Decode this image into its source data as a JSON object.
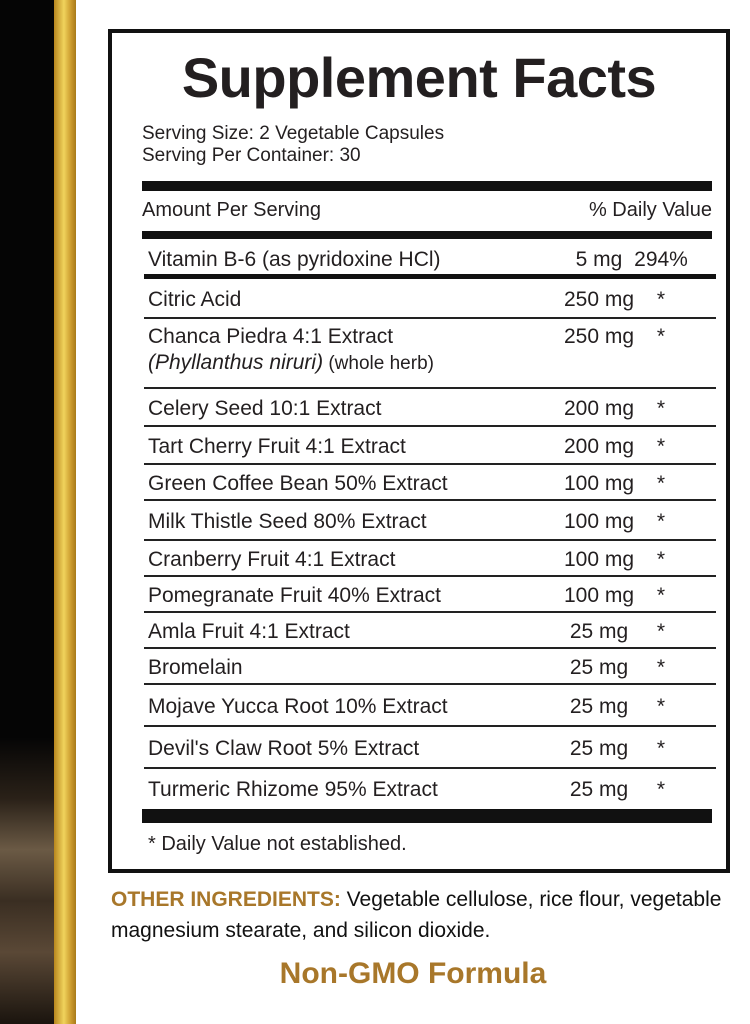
{
  "title": "Supplement Facts",
  "serving_size": "Serving Size: 2 Vegetable Capsules",
  "servings_per_container": "Serving Per Container: 30",
  "header": {
    "amount": "Amount Per Serving",
    "dv": "% Daily Value"
  },
  "rows": [
    {
      "name": "Vitamin B-6 (as pyridoxine HCl)",
      "amount": "5 mg",
      "dv": "294%"
    },
    {
      "name": "Citric Acid",
      "amount": "250 mg",
      "dv": "*"
    },
    {
      "name": "Chanca Piedra 4:1 Extract",
      "sub_italic": "(Phyllanthus niruri)",
      "sub": " (whole herb)",
      "amount": "250 mg",
      "dv": "*"
    },
    {
      "name": "Celery Seed 10:1 Extract",
      "amount": "200 mg",
      "dv": "*"
    },
    {
      "name": "Tart Cherry Fruit 4:1 Extract",
      "amount": "200 mg",
      "dv": "*"
    },
    {
      "name": "Green Coffee Bean 50% Extract",
      "amount": "100 mg",
      "dv": "*"
    },
    {
      "name": "Milk Thistle Seed 80% Extract",
      "amount": "100 mg",
      "dv": "*"
    },
    {
      "name": "Cranberry Fruit 4:1 Extract",
      "amount": "100 mg",
      "dv": "*"
    },
    {
      "name": "Pomegranate Fruit 40% Extract",
      "amount": "100 mg",
      "dv": "*"
    },
    {
      "name": "Amla Fruit 4:1 Extract",
      "amount": "25 mg",
      "dv": "*"
    },
    {
      "name": "Bromelain",
      "amount": "25 mg",
      "dv": "*"
    },
    {
      "name": "Mojave Yucca Root 10% Extract",
      "amount": "25 mg",
      "dv": "*"
    },
    {
      "name": "Devil's Claw Root 5% Extract",
      "amount": "25 mg",
      "dv": "*"
    },
    {
      "name": "Turmeric Rhizome 95% Extract",
      "amount": "25 mg",
      "dv": "*"
    }
  ],
  "footnote": "* Daily Value not established.",
  "other_ingredients": {
    "label": "OTHER INGREDIENTS:",
    "text": " Vegetable cellulose, rice flour, vegetable magnesium stearate, and silicon dioxide."
  },
  "badge": "Non-GMO Formula"
}
